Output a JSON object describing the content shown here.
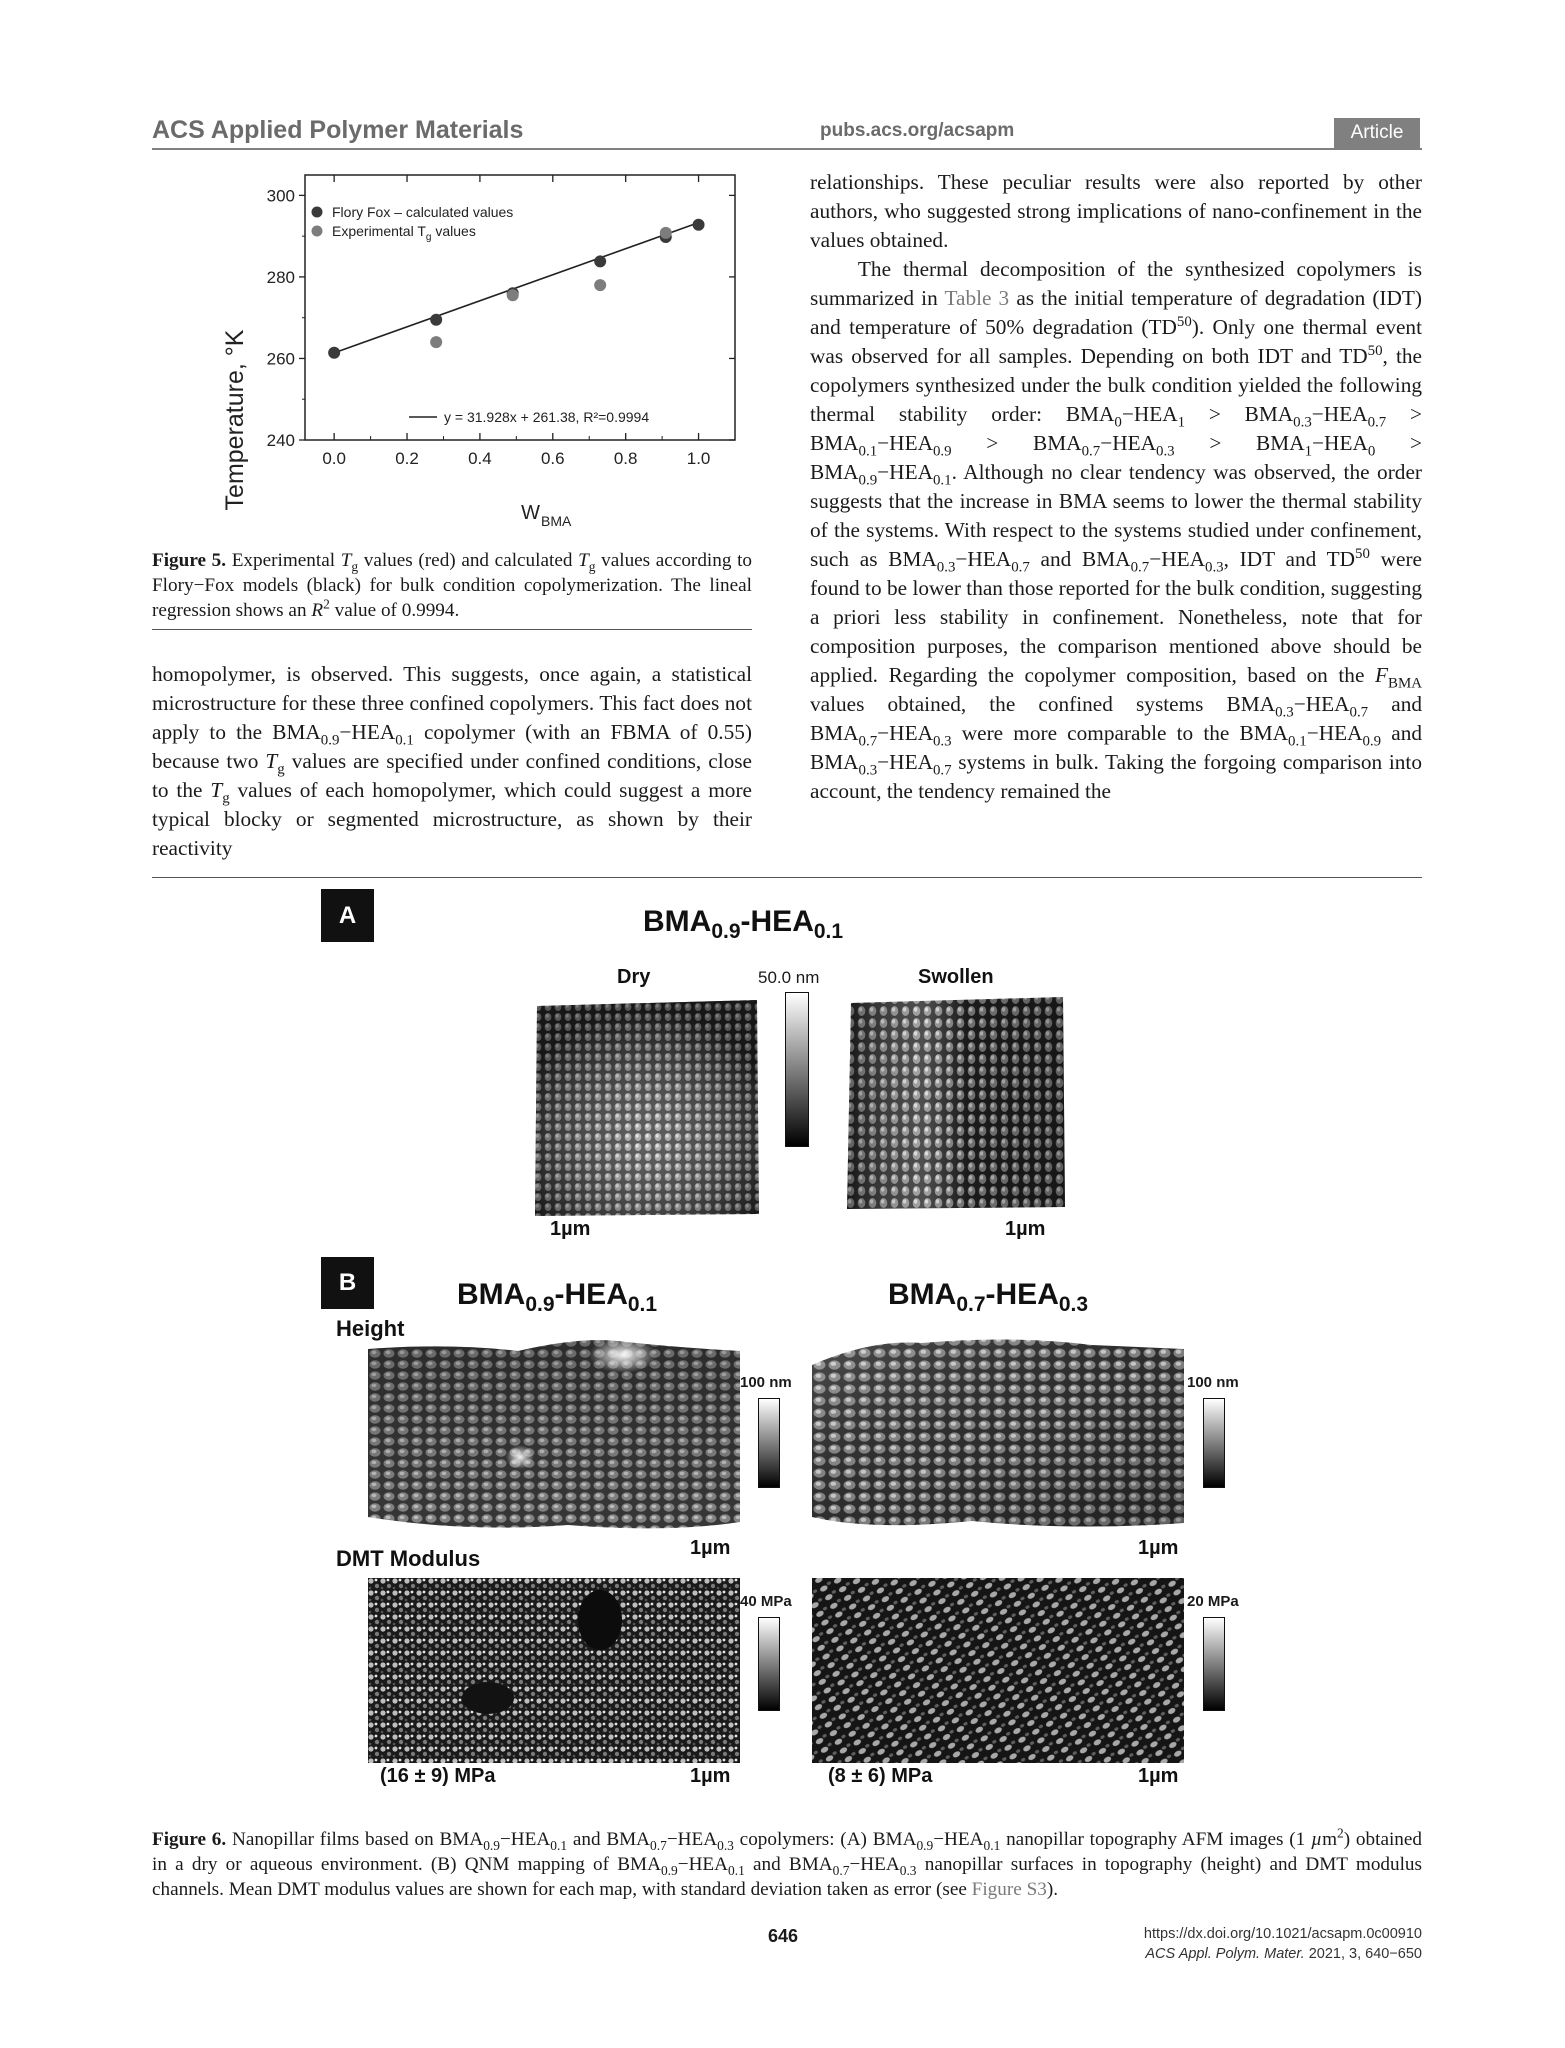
{
  "header": {
    "journal": "ACS Applied Polymer Materials",
    "site": "pubs.acs.org/acsapm",
    "badge": "Article"
  },
  "figure5": {
    "chart_data": {
      "type": "scatter",
      "xlabel": "W",
      "xlabel_sub": "BMA",
      "ylabel": "Temperature, °K",
      "xlim": [
        -0.08,
        1.1
      ],
      "ylim": [
        240,
        305
      ],
      "xticks": [
        "0.0",
        "0.2",
        "0.4",
        "0.6",
        "0.8",
        "1.0"
      ],
      "yticks": [
        "240",
        "260",
        "280",
        "300"
      ],
      "legend_position": "top-left",
      "series": [
        {
          "name": "Flory Fox – calculated values",
          "color": "#3a3a3a",
          "x": [
            0.0,
            0.28,
            0.49,
            0.73,
            0.91,
            1.0
          ],
          "y": [
            261.4,
            269.5,
            276.0,
            283.8,
            289.8,
            292.8
          ]
        },
        {
          "name": "Experimental T",
          "name_sub": "g",
          "name_suffix": " values",
          "color": "#7d7d7d",
          "x": [
            0.28,
            0.49,
            0.73,
            0.91
          ],
          "y": [
            264.0,
            275.5,
            278.0,
            290.8
          ]
        }
      ],
      "fit": {
        "label": "y = 31.928x + 261.38, R²=0.9994",
        "slope": 31.928,
        "intercept": 261.38
      }
    },
    "caption_label": "Figure 5.",
    "caption_html": " Experimental <i>T</i><sub>g</sub> values (red) and calculated <i>T</i><sub>g</sub> values according to Flory−Fox models (black) for bulk condition copolymerization. The lineal regression shows an <i>R</i><sup>2</sup> value of 0.9994."
  },
  "left_column_html": "homopolymer, is observed. This suggests, once again, a statistical microstructure for these three confined copolymers. This fact does not apply to the BMA<sub>0.9</sub>−HEA<sub>0.1</sub> copolymer (with an FBMA of 0.55) because two <i>T</i><sub>g</sub> values are specified under confined conditions, close to the <i>T</i><sub>g</sub> values of each homopolymer, which could suggest a more typical blocky or segmented microstructure, as shown by their reactivity",
  "right_column": [
    "relationships. These peculiar results were also reported by other authors, who suggested strong implications of nano-confinement in the values obtained.",
    "&nbsp;&nbsp;&nbsp;&nbsp;The thermal decomposition of the synthesized copolymers is summarized in <span style=\"color:#7a7a7a\">Table 3</span> as the initial temperature of degradation (IDT) and temperature of 50% degradation (TD<sup>50</sup>). Only one thermal event was observed for all samples. Depending on both IDT and TD<sup>50</sup>, the copolymers synthesized under the bulk condition yielded the following thermal stability order: BMA<sub>0</sub>−HEA<sub>1</sub> &gt; BMA<sub>0.3</sub>−HEA<sub>0.7</sub> &gt; BMA<sub>0.1</sub>−HEA<sub>0.9</sub> &gt; BMA<sub>0.7</sub>−HEA<sub>0.3</sub> &gt; BMA<sub>1</sub>−HEA<sub>0</sub> &gt; BMA<sub>0.9</sub>−HEA<sub>0.1</sub>. Although no clear tendency was observed, the order suggests that the increase in BMA seems to lower the thermal stability of the systems. With respect to the systems studied under confinement, such as BMA<sub>0.3</sub>−HEA<sub>0.7</sub> and BMA<sub>0.7</sub>−HEA<sub>0.3</sub>, IDT and TD<sup>50</sup> were found to be lower than those reported for the bulk condition, suggesting a priori less stability in confinement. Nonetheless, note that for composition purposes, the comparison mentioned above should be applied. Regarding the copolymer composition, based on the <i>F</i><sub>BMA</sub> values obtained, the confined systems BMA<sub>0.3</sub>−HEA<sub>0.7</sub> and BMA<sub>0.7</sub>−HEA<sub>0.3</sub> were more comparable to the BMA<sub>0.1</sub>−HEA<sub>0.9</sub> and BMA<sub>0.3</sub>−HEA<sub>0.7</sub> systems in bulk. Taking the forgoing comparison into account, the tendency remained the"
  ],
  "figure6": {
    "panelA": {
      "label": "A",
      "title_html": "BMA<sub>0.9</sub>-HEA<sub>0.1</sub>",
      "dry_label": "Dry",
      "swollen_label": "Swollen",
      "colorbar_label": "50.0 nm",
      "scale_dry": "1µm",
      "scale_swollen": "1µm"
    },
    "panelB": {
      "label": "B",
      "title_left_html": "BMA<sub>0.9</sub>-HEA<sub>0.1</sub>",
      "title_right_html": "BMA<sub>0.7</sub>-HEA<sub>0.3</sub>",
      "height_label": "Height",
      "dmt_label": "DMT Modulus",
      "height_cb_left": "100 nm",
      "height_cb_right": "100 nm",
      "dmt_cb_left": "40 MPa",
      "dmt_cb_right": "20 MPa",
      "scale_h_left": "1µm",
      "scale_h_right": "1µm",
      "scale_d_left": "1µm",
      "scale_d_right": "1µm",
      "mean_left": "(16 ± 9) MPa",
      "mean_right": "(8 ± 6) MPa"
    },
    "caption_label": "Figure 6.",
    "caption_html": " Nanopillar films based on BMA<sub>0.9</sub>−HEA<sub>0.1</sub> and BMA<sub>0.7</sub>−HEA<sub>0.3</sub> copolymers: (A) BMA<sub>0.9</sub>−HEA<sub>0.1</sub> nanopillar topography AFM images (1 <i>µ</i>m<sup>2</sup>) obtained in a dry or aqueous environment. (B) QNM mapping of BMA<sub>0.9</sub>−HEA<sub>0.1</sub> and BMA<sub>0.7</sub>−HEA<sub>0.3</sub> nanopillar surfaces in topography (height) and DMT modulus channels. Mean DMT modulus values are shown for each map, with standard deviation taken as error (see <span style=\"color:#7a7a7a\">Figure S3</span>)."
  },
  "footer": {
    "page": "646",
    "doi": "https://dx.doi.org/10.1021/acsapm.0c00910",
    "citation_html": "<i>ACS Appl. Polym. Mater.</i> 2021, 3, 640−650"
  }
}
